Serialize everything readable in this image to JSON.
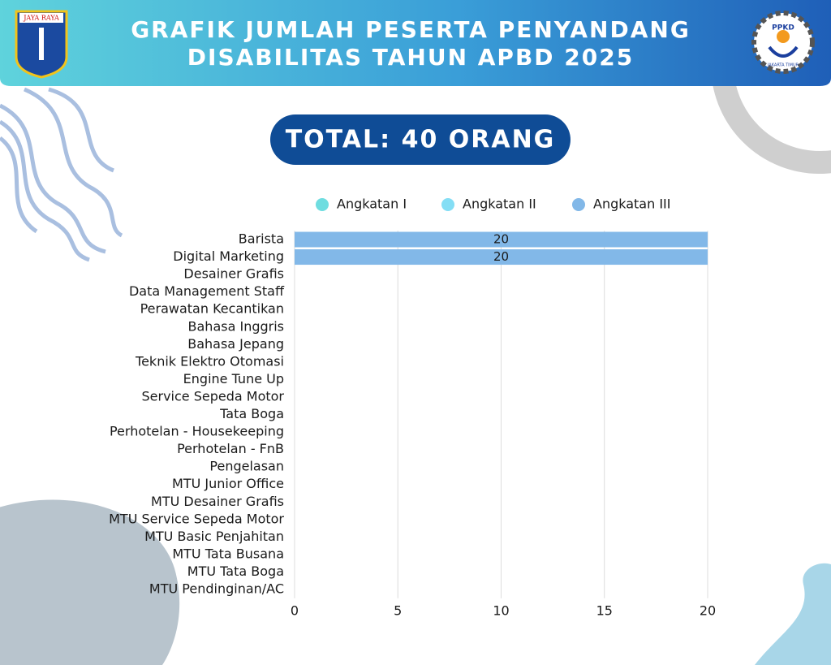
{
  "header": {
    "title_lines": [
      "GRAFIK JUMLAH PESERTA PENYANDANG",
      "DISABILITAS TAHUN APBD 2025"
    ],
    "total": "TOTAL: 40 ORANG",
    "left_logo": "JAYA RAYA",
    "right_logo": "PPKD",
    "right_logo_caption": "JAKARTA TIMUR"
  },
  "chart_data": {
    "type": "stacked-bar-horizontal",
    "categories": [
      "Barista",
      "Digital Marketing",
      "Desainer Grafis",
      "Data Management Staff",
      "Perawatan Kecantikan",
      "Bahasa Inggris",
      "Bahasa Jepang",
      "Teknik Elektro Otomasi",
      "Engine Tune Up",
      "Service Sepeda Motor",
      "Tata Boga",
      "Perhotelan - Housekeeping",
      "Perhotelan - FnB",
      "Pengelasan",
      "MTU Junior Office",
      "MTU Desainer Grafis",
      "MTU Service Sepeda Motor",
      "MTU Basic Penjahitan",
      "MTU Tata Busana",
      "MTU Tata Boga",
      "MTU Pendinginan/AC"
    ],
    "series": [
      {
        "name": "Angkatan I",
        "color": "#6fdde0",
        "values": [
          0,
          0,
          0,
          0,
          0,
          0,
          0,
          0,
          0,
          0,
          0,
          0,
          0,
          0,
          0,
          0,
          0,
          0,
          0,
          0,
          0
        ]
      },
      {
        "name": "Angkatan II",
        "color": "#84def5",
        "values": [
          0,
          0,
          0,
          0,
          0,
          0,
          0,
          0,
          0,
          0,
          0,
          0,
          0,
          0,
          0,
          0,
          0,
          0,
          0,
          0,
          0
        ]
      },
      {
        "name": "Angkatan III",
        "color": "#82b8e8",
        "values": [
          20,
          20,
          0,
          0,
          0,
          0,
          0,
          0,
          0,
          0,
          0,
          0,
          0,
          0,
          0,
          0,
          0,
          0,
          0,
          0,
          0
        ]
      }
    ],
    "xlim": [
      0,
      20
    ],
    "xticks": [
      0,
      5,
      10,
      15,
      20
    ],
    "grid": true,
    "legend": "top"
  }
}
